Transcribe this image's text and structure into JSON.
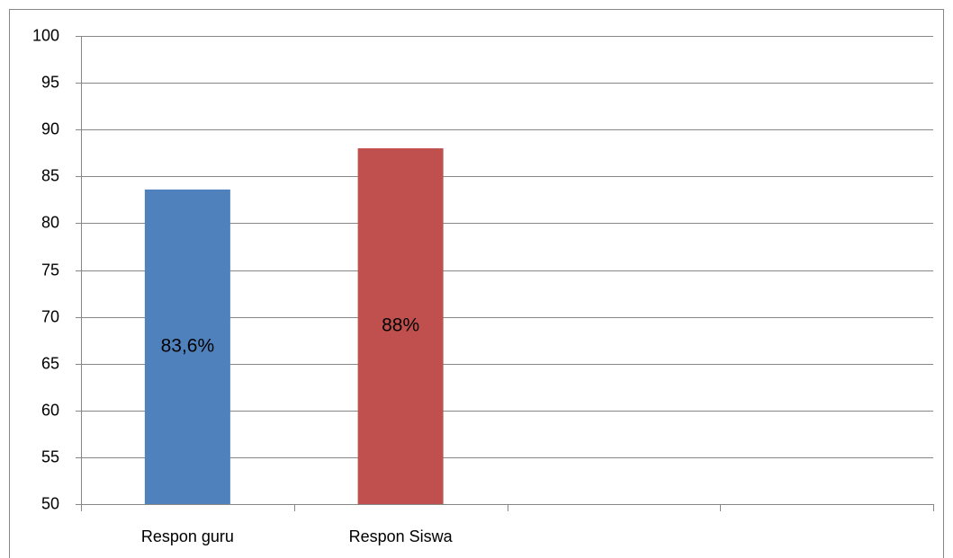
{
  "chart_data": {
    "type": "bar",
    "categories": [
      "Respon guru",
      "Respon Siswa",
      null,
      null
    ],
    "values": [
      83.6,
      88,
      null,
      null
    ],
    "value_labels": [
      "83,6%",
      "88%",
      null,
      null
    ],
    "colors": [
      "#4f81bd",
      "#c0504d"
    ],
    "ylim": [
      50,
      100
    ],
    "yticks": [
      50,
      55,
      60,
      65,
      70,
      75,
      80,
      85,
      90,
      95,
      100
    ],
    "grid": true
  }
}
